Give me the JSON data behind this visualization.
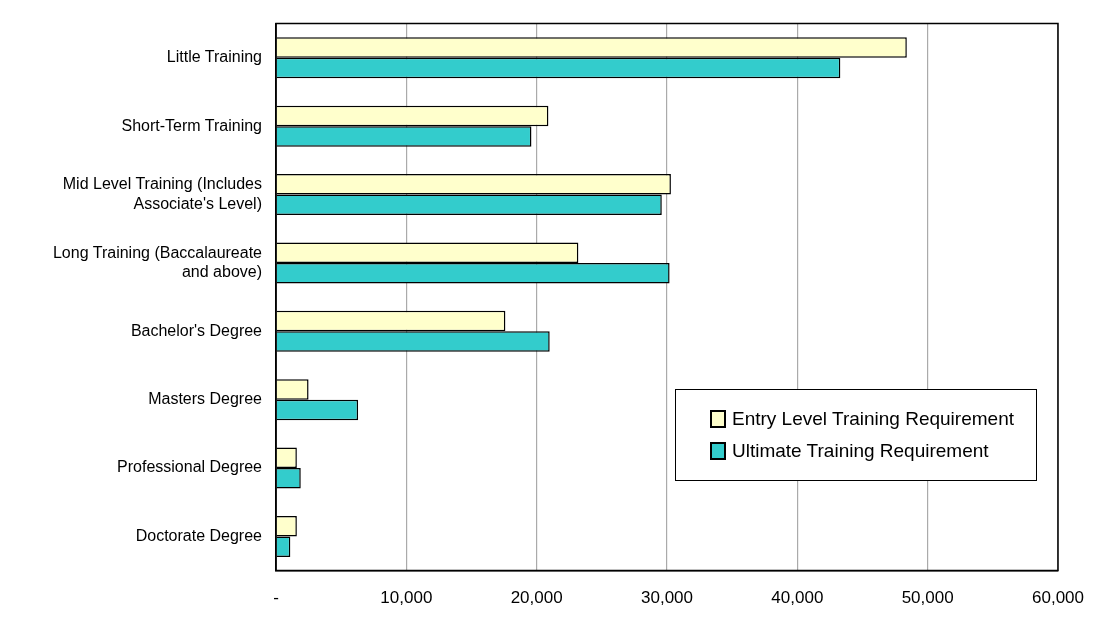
{
  "chart_data": {
    "type": "bar",
    "orientation": "horizontal",
    "categories": [
      "Little Training",
      "Short-Term Training",
      "Mid Level Training (Includes Associate's Level)",
      "Long Training (Baccalaureate and above)",
      "Bachelor's Degree",
      "Masters Degree",
      "Professional Degree",
      "Doctorate Degree"
    ],
    "series": [
      {
        "name": "Entry Level Training Requirement",
        "color": "#ffffcc",
        "values": [
          48400,
          20900,
          30300,
          23200,
          17600,
          2500,
          1600,
          1600
        ]
      },
      {
        "name": "Ultimate Training Requirement",
        "color": "#33cccc",
        "values": [
          43300,
          19600,
          29600,
          30200,
          21000,
          6300,
          1900,
          1100
        ]
      }
    ],
    "xlim": [
      0,
      60000
    ],
    "xticks": [
      {
        "value": 0,
        "label": "-"
      },
      {
        "value": 10000,
        "label": "10,000"
      },
      {
        "value": 20000,
        "label": "20,000"
      },
      {
        "value": 30000,
        "label": "30,000"
      },
      {
        "value": 40000,
        "label": "40,000"
      },
      {
        "value": 50000,
        "label": "50,000"
      },
      {
        "value": 60000,
        "label": "60,000"
      }
    ],
    "grid": "x",
    "legend": "bottom right"
  }
}
